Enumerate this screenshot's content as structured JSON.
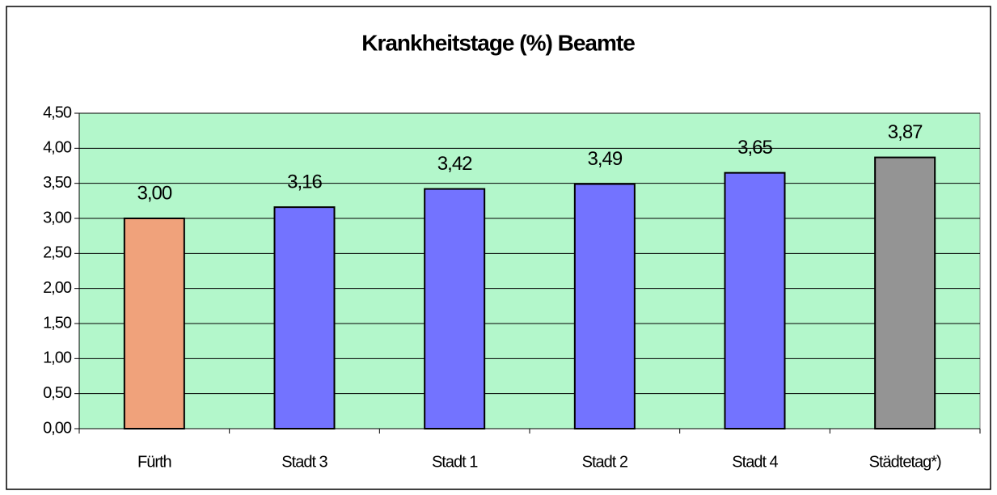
{
  "chart_data": {
    "type": "bar",
    "title": "Krankheitstage (%) Beamte",
    "categories": [
      "Fürth",
      "Stadt 3",
      "Stadt 1",
      "Stadt 2",
      "Stadt 4",
      "Städtetag*)"
    ],
    "values": [
      3.0,
      3.16,
      3.42,
      3.49,
      3.65,
      3.87
    ],
    "value_labels": [
      "3,00",
      "3,16",
      "3,42",
      "3,49",
      "3,65",
      "3,87"
    ],
    "colors": [
      "#f0a27b",
      "#7373ff",
      "#7373ff",
      "#7373ff",
      "#7373ff",
      "#949494"
    ],
    "ylim": [
      0,
      4.5
    ],
    "yticks": [
      {
        "value": 0,
        "label": "0,00"
      },
      {
        "value": 0.5,
        "label": "0,50"
      },
      {
        "value": 1,
        "label": "1,00"
      },
      {
        "value": 1.5,
        "label": "1,50"
      },
      {
        "value": 2,
        "label": "2,00"
      },
      {
        "value": 2.5,
        "label": "2,50"
      },
      {
        "value": 3,
        "label": "3,00"
      },
      {
        "value": 3.5,
        "label": "3,50"
      },
      {
        "value": 4,
        "label": "4,00"
      },
      {
        "value": 4.5,
        "label": "4,50"
      }
    ],
    "grid": true,
    "plot_background": "#b3f7cb"
  }
}
